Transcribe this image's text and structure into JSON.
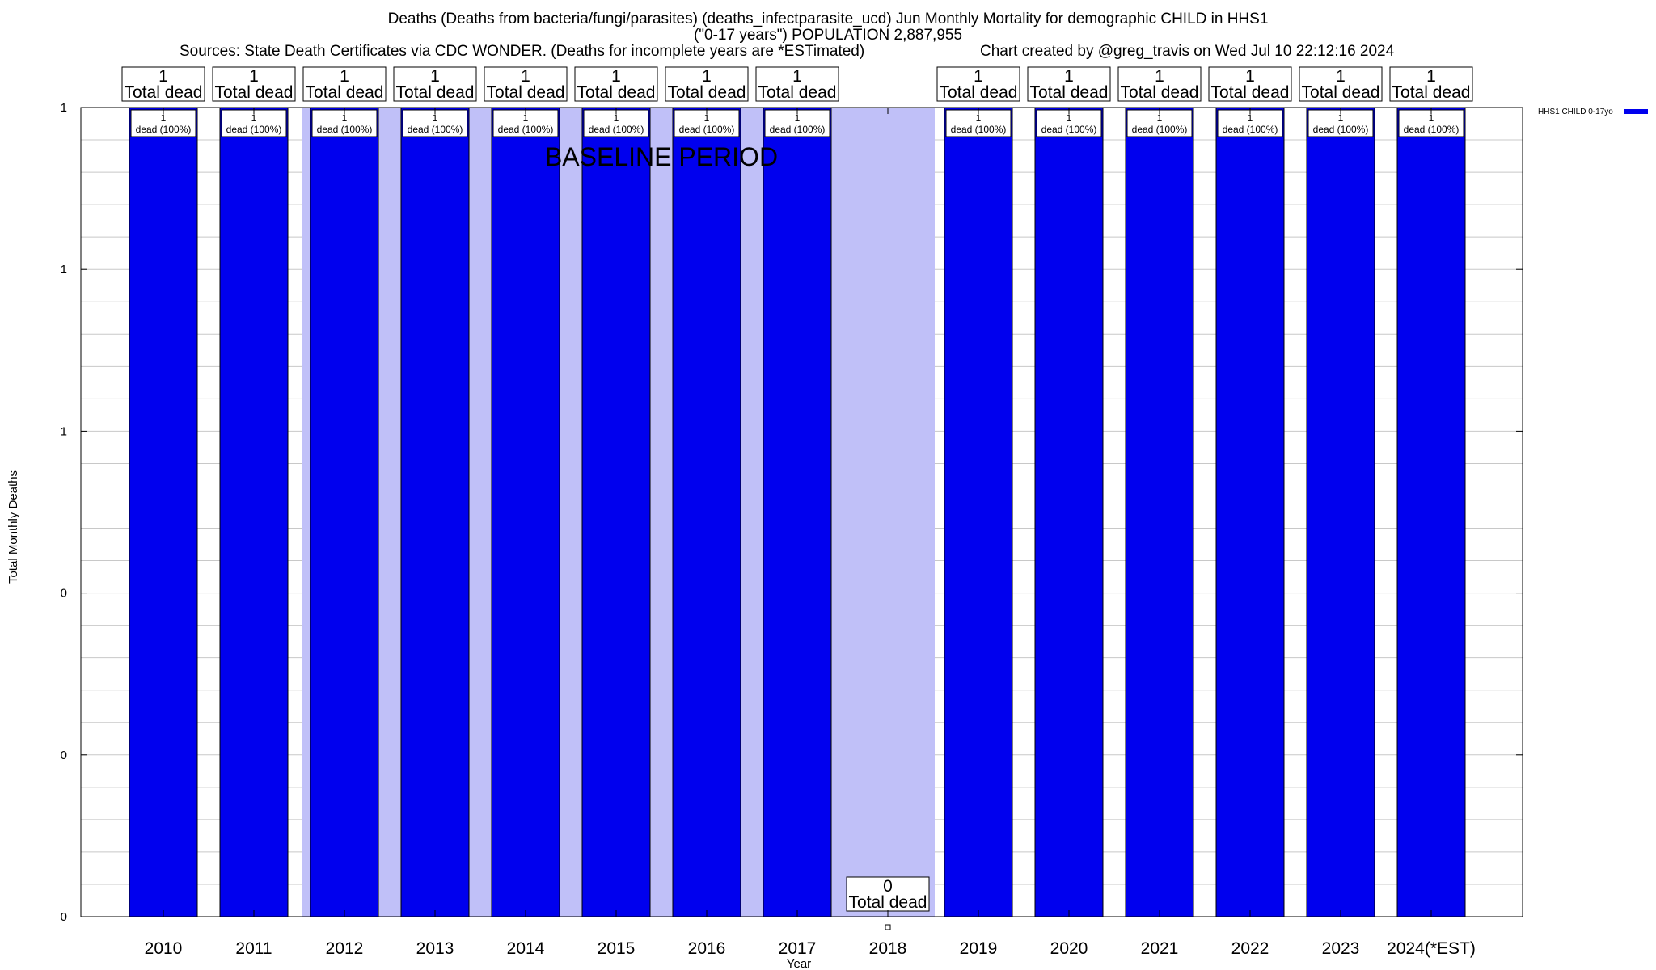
{
  "header": {
    "title_line1": "Deaths (Deaths from bacteria/fungi/parasites) (deaths_infectparasite_ucd) Jun Monthly Mortality for demographic CHILD in HHS1",
    "title_line2": "(\"0-17 years\") POPULATION 2,887,955",
    "sources": "Sources: State Death Certificates via CDC WONDER. (Deaths for incomplete years are *ESTimated)",
    "credit": "Chart created by @greg_travis on Wed Jul 10 22:12:16 2024"
  },
  "chart_data": {
    "type": "bar",
    "xlabel": "Year",
    "ylabel": "Total Monthly Deaths",
    "categories": [
      "2010",
      "2011",
      "2012",
      "2013",
      "2014",
      "2015",
      "2016",
      "2017",
      "2018",
      "2019",
      "2020",
      "2021",
      "2022",
      "2023",
      "2024(*EST)"
    ],
    "series": [
      {
        "name": "HHS1 CHILD 0-17yo",
        "color": "#0000ee",
        "values": [
          1,
          1,
          1,
          1,
          1,
          1,
          1,
          1,
          0,
          1,
          1,
          1,
          1,
          1,
          1
        ],
        "bar_labels": [
          "1\ndead (100%)",
          "1\ndead (100%)",
          "1\ndead (100%)",
          "1\ndead (100%)",
          "1\ndead (100%)",
          "1\ndead (100%)",
          "1\ndead (100%)",
          "1\ndead (100%)",
          "",
          "1\ndead (100%)",
          "1\ndead (100%)",
          "1\ndead (100%)",
          "1\ndead (100%)",
          "1\ndead (100%)",
          "1\ndead (100%)"
        ]
      }
    ],
    "totals": [
      {
        "value": "1",
        "label": "Total dead"
      },
      {
        "value": "1",
        "label": "Total dead"
      },
      {
        "value": "1",
        "label": "Total dead"
      },
      {
        "value": "1",
        "label": "Total dead"
      },
      {
        "value": "1",
        "label": "Total dead"
      },
      {
        "value": "1",
        "label": "Total dead"
      },
      {
        "value": "1",
        "label": "Total dead"
      },
      {
        "value": "1",
        "label": "Total dead"
      },
      {
        "value": "0",
        "label": "Total dead"
      },
      {
        "value": "1",
        "label": "Total dead"
      },
      {
        "value": "1",
        "label": "Total dead"
      },
      {
        "value": "1",
        "label": "Total dead"
      },
      {
        "value": "1",
        "label": "Total dead"
      },
      {
        "value": "1",
        "label": "Total dead"
      },
      {
        "value": "1",
        "label": "Total dead"
      }
    ],
    "ylim": [
      0,
      1
    ],
    "ytick_values": [
      0,
      0.2,
      0.4,
      0.6,
      0.8,
      1.0
    ],
    "ytick_labels": [
      "0",
      "0",
      "0",
      "1",
      "1",
      "1"
    ],
    "grid": true,
    "baseline_period": {
      "label": "BASELINE PERIOD",
      "from": "2012",
      "to": "2019",
      "color": "#c0c0f8"
    },
    "legend": {
      "position": "top-right",
      "entries": [
        "HHS1 CHILD 0-17yo"
      ]
    }
  }
}
